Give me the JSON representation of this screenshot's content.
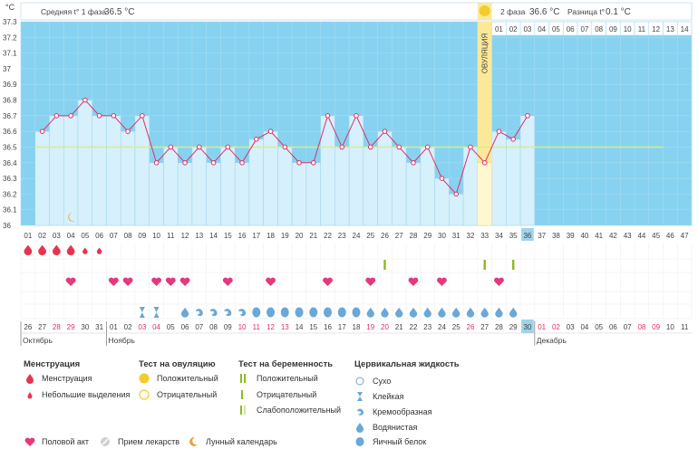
{
  "header": {
    "unit": "°C",
    "phase1_label": "Средняя t° 1 фаза",
    "phase1_value": "36.5 °C",
    "phase2_label": "2 фаза",
    "phase2_value": "36.6 °C",
    "diff_label": "Разница t°",
    "diff_value": "0.1 °C"
  },
  "ovulation_label": "ОВУЛЯЦИЯ",
  "chart_data": {
    "type": "line",
    "ylim": [
      36.0,
      37.3
    ],
    "yticks": [
      "36",
      "36.1",
      "36.2",
      "36.3",
      "36.4",
      "36.5",
      "36.6",
      "36.7",
      "36.8",
      "36.9",
      "37",
      "37.1",
      "37.2",
      "37.3"
    ],
    "cycle_days": [
      "01",
      "02",
      "03",
      "04",
      "05",
      "06",
      "07",
      "08",
      "09",
      "10",
      "11",
      "12",
      "13",
      "14",
      "15",
      "16",
      "17",
      "18",
      "19",
      "20",
      "21",
      "22",
      "23",
      "24",
      "25",
      "26",
      "27",
      "28",
      "29",
      "30",
      "31",
      "32",
      "33",
      "34",
      "35",
      "36",
      "37",
      "38",
      "39",
      "40",
      "41",
      "42",
      "43",
      "44",
      "45",
      "46",
      "47"
    ],
    "top_days_phase2": [
      "01",
      "02",
      "03",
      "04",
      "05",
      "06",
      "07",
      "08",
      "09",
      "10",
      "11",
      "12",
      "13",
      "14"
    ],
    "temperatures": [
      null,
      36.6,
      36.7,
      36.7,
      36.8,
      36.7,
      36.7,
      36.6,
      36.7,
      36.4,
      36.5,
      36.4,
      36.5,
      36.4,
      36.5,
      36.4,
      36.55,
      36.6,
      36.5,
      36.4,
      36.4,
      36.7,
      36.5,
      36.7,
      36.5,
      36.6,
      36.5,
      36.4,
      36.5,
      36.3,
      36.2,
      36.5,
      36.4,
      36.6,
      36.55,
      36.7
    ],
    "average_line": 36.5,
    "ovulation_day": 33,
    "current_day": 36,
    "moon_day": 4
  },
  "markers": {
    "menstruation_big": [
      1,
      2,
      3,
      4
    ],
    "menstruation_small": [
      5,
      6
    ],
    "intercourse": [
      4,
      7,
      8,
      10,
      11,
      12,
      15,
      18,
      22,
      25,
      28,
      30,
      34
    ],
    "ovtest": [
      26,
      33,
      35
    ],
    "cm_sticky": [
      9,
      10
    ],
    "cm_creamy": [
      13,
      14,
      15,
      16
    ],
    "cm_watery": [
      12,
      25,
      26,
      27,
      28,
      29,
      30,
      31,
      32,
      33,
      34,
      35
    ],
    "cm_eggwhite": [
      17,
      18,
      19,
      20,
      21,
      22,
      23,
      24
    ]
  },
  "calendar": {
    "dates": [
      "26",
      "27",
      "28",
      "29",
      "30",
      "31",
      "01",
      "02",
      "03",
      "04",
      "05",
      "06",
      "07",
      "08",
      "09",
      "10",
      "11",
      "12",
      "13",
      "14",
      "15",
      "16",
      "17",
      "18",
      "19",
      "20",
      "21",
      "22",
      "23",
      "24",
      "25",
      "26",
      "27",
      "28",
      "29",
      "30",
      "01",
      "02",
      "03",
      "04",
      "05",
      "06",
      "07",
      "08",
      "09",
      "10",
      "11"
    ],
    "weekend_days": [
      3,
      4,
      9,
      10,
      16,
      17,
      18,
      19,
      25,
      26,
      32,
      37,
      38,
      44,
      45
    ],
    "months": [
      {
        "label": "Октябрь",
        "day": 1
      },
      {
        "label": "Ноябрь",
        "day": 7
      },
      {
        "label": "Декабрь",
        "day": 37
      }
    ]
  },
  "legend": {
    "menstruation": {
      "title": "Менструация",
      "items": [
        "Менструация",
        "Небольшие выделения"
      ]
    },
    "ovtest": {
      "title": "Тест на овуляцию",
      "items": [
        "Положительный",
        "Отрицательный"
      ]
    },
    "pregtest": {
      "title": "Тест на беременность",
      "items": [
        "Положительный",
        "Отрицательный",
        "Слабоположительный"
      ]
    },
    "cervical": {
      "title": "Цервикальная жидкость",
      "items": [
        "Сухо",
        "Клейкая",
        "Кремообразная",
        "Водянистая",
        "Яичный белок"
      ]
    },
    "other": [
      "Половой акт",
      "Прием лекарств",
      "Лунный календарь"
    ]
  },
  "colors": {
    "chart_bg": "#87d2f0",
    "bar": "#d6f0fc",
    "bar_edge": "#9fd3ea",
    "line": "#e0306a",
    "ovulation": "#fbe999",
    "avg": "#d9ed8a",
    "menstruation": "#e8334f",
    "heart": "#e5387d",
    "drop": "#6aa8d8",
    "ovtest": "#8cbb1e",
    "weekend": "#e0306a",
    "current": "#9fd3ea"
  }
}
